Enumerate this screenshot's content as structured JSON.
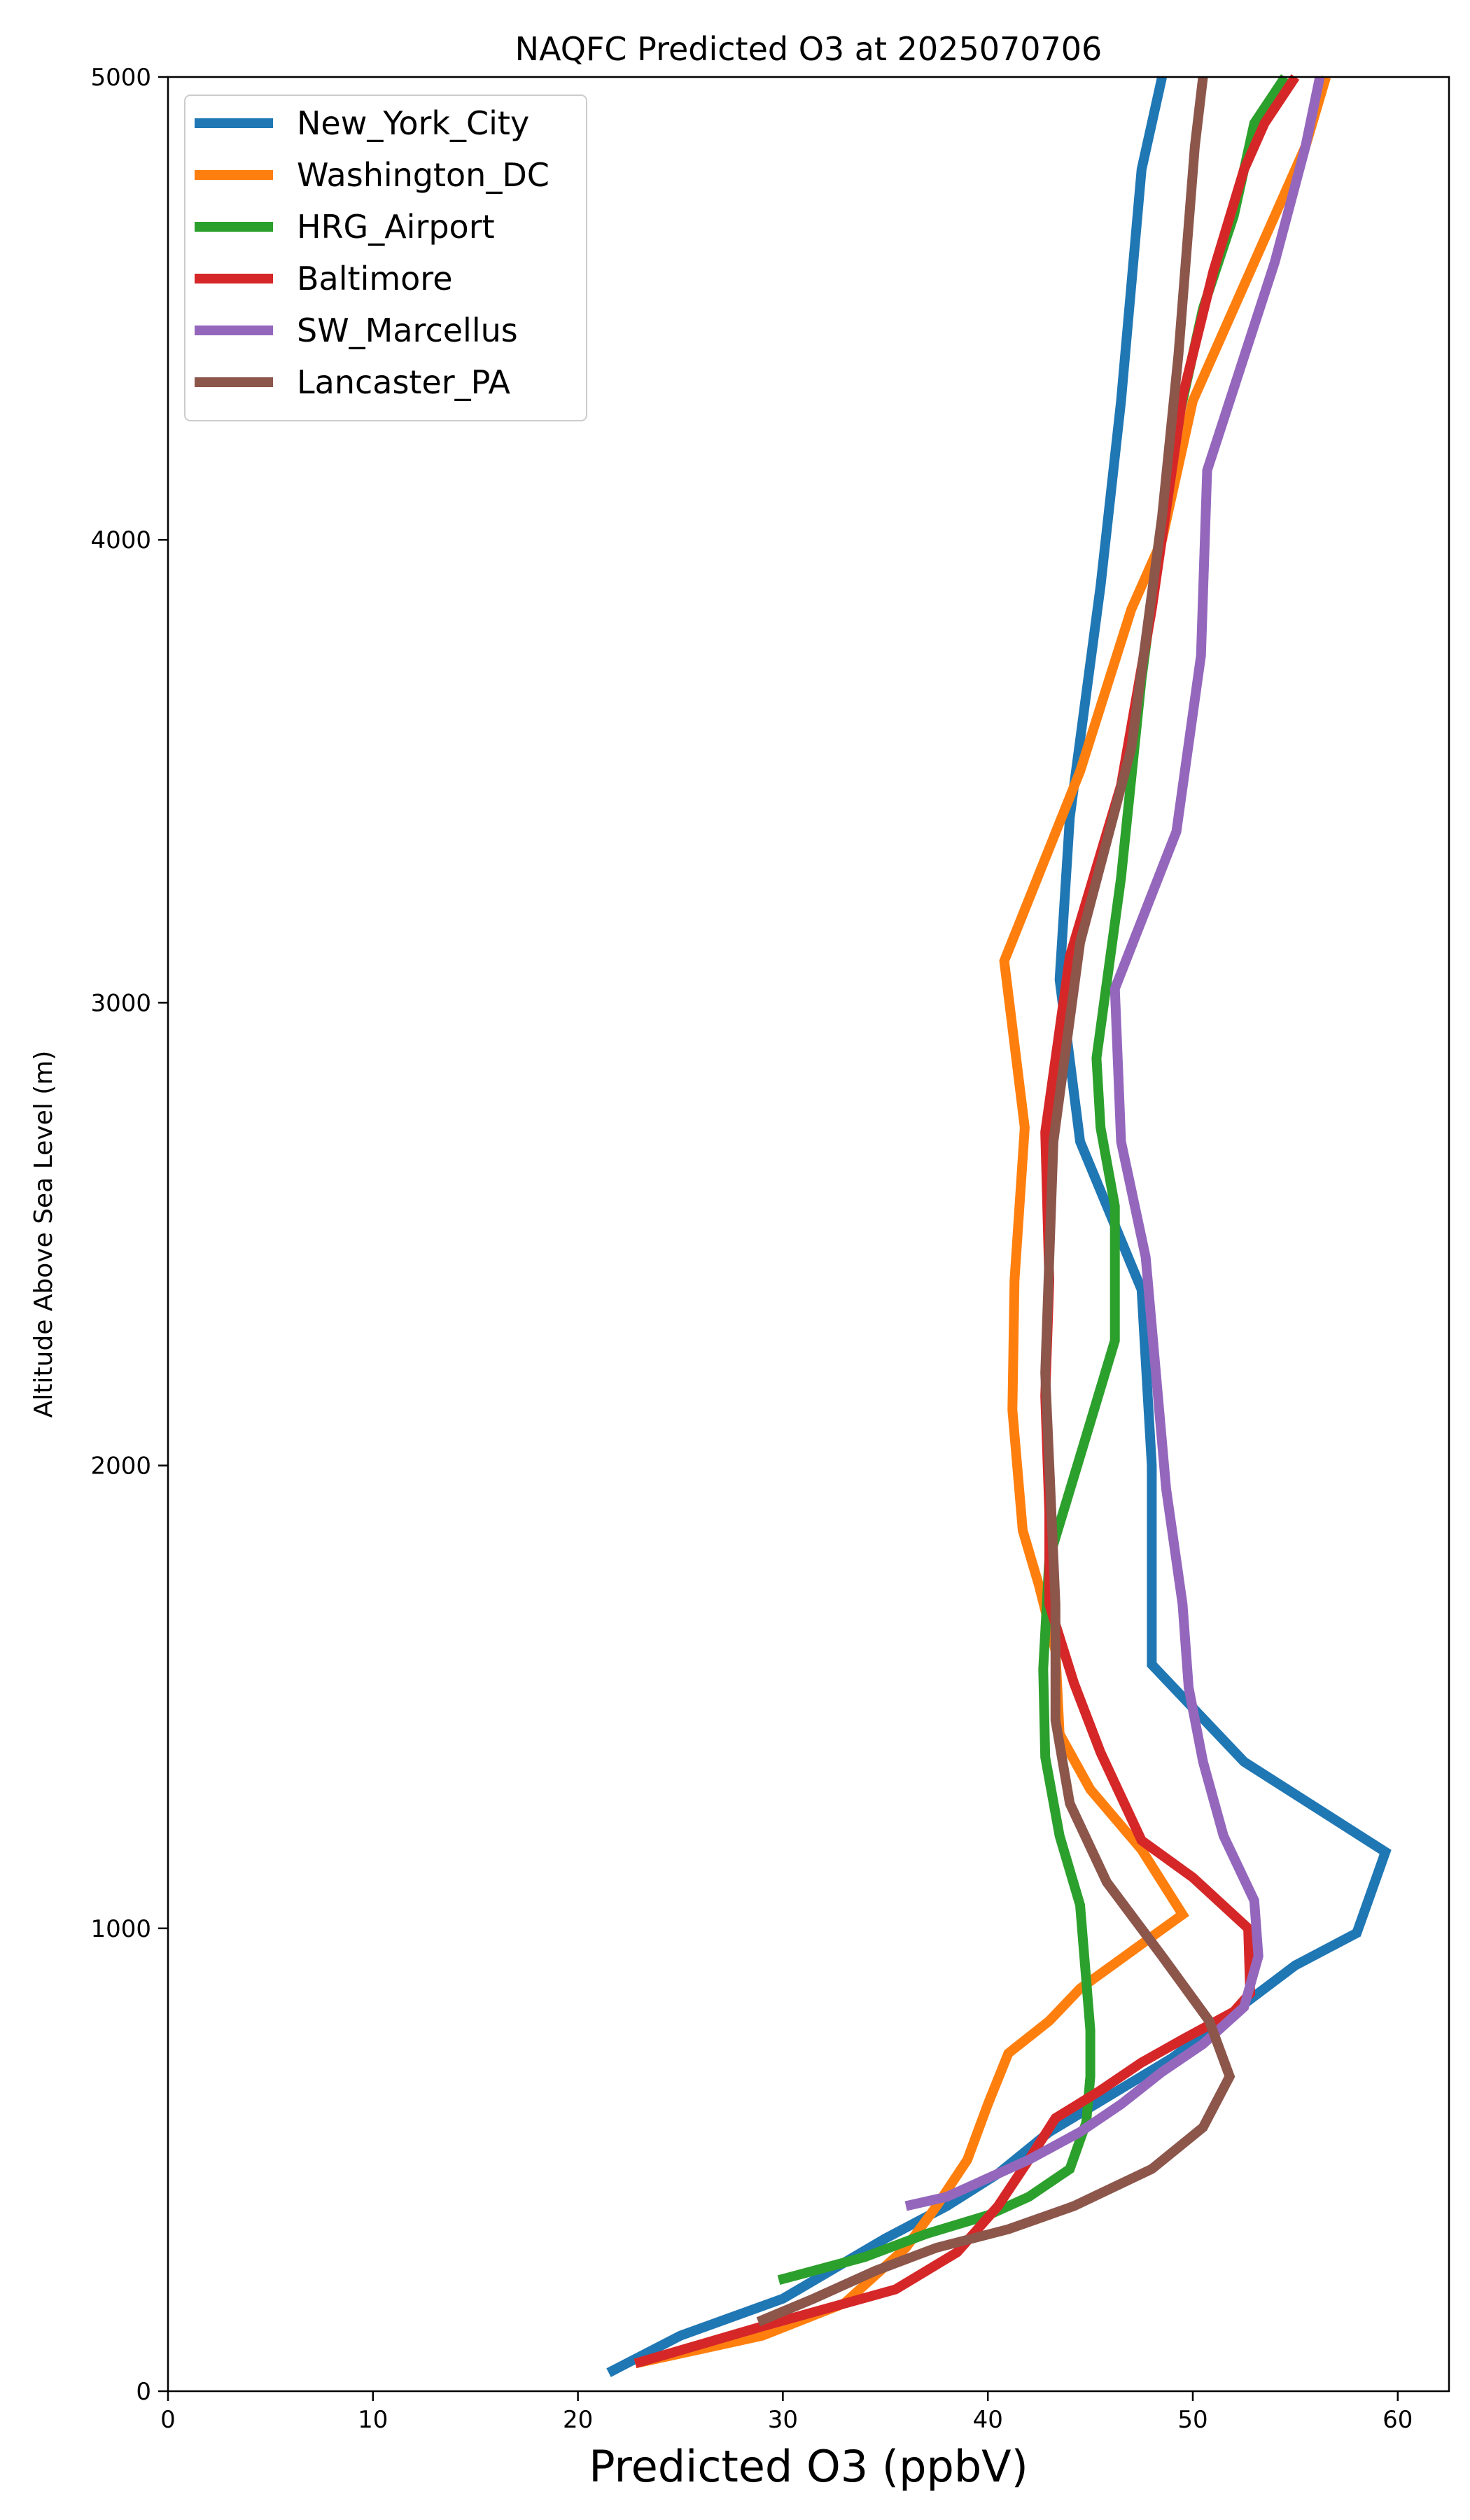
{
  "chart_data": {
    "type": "line",
    "title": "NAQFC Predicted O3 at 2025070706",
    "xlabel": "Predicted O3 (ppbV)",
    "ylabel": "Altitude Above Sea Level (m)",
    "xlim": [
      0,
      62.5
    ],
    "ylim": [
      0,
      5000
    ],
    "xticks": [
      0,
      10,
      20,
      30,
      40,
      50,
      60
    ],
    "yticks": [
      0,
      1000,
      2000,
      3000,
      4000,
      5000
    ],
    "grid": false,
    "legend_position": "top-left",
    "series": [
      {
        "name": "New_York_City",
        "color": "#1f77b4",
        "points": [
          [
            21.5,
            40
          ],
          [
            25,
            120
          ],
          [
            30,
            200
          ],
          [
            35,
            330
          ],
          [
            38,
            400
          ],
          [
            40.5,
            470
          ],
          [
            43,
            560
          ],
          [
            46,
            640
          ],
          [
            49,
            720
          ],
          [
            52,
            820
          ],
          [
            55,
            920
          ],
          [
            58,
            990
          ],
          [
            59.4,
            1165
          ],
          [
            52.5,
            1360
          ],
          [
            48,
            1570
          ],
          [
            48,
            1800
          ],
          [
            48,
            2000
          ],
          [
            47.5,
            2380
          ],
          [
            44.5,
            2700
          ],
          [
            43.5,
            3050
          ],
          [
            44,
            3400
          ],
          [
            45.5,
            3900
          ],
          [
            46.5,
            4300
          ],
          [
            47.5,
            4800
          ],
          [
            48.5,
            5000
          ]
        ]
      },
      {
        "name": "Washington_DC",
        "color": "#ff7f0e",
        "points": [
          [
            22.8,
            60
          ],
          [
            29,
            120
          ],
          [
            33,
            190
          ],
          [
            36,
            310
          ],
          [
            37.5,
            400
          ],
          [
            39,
            500
          ],
          [
            40,
            620
          ],
          [
            41,
            730
          ],
          [
            43,
            800
          ],
          [
            44.5,
            870
          ],
          [
            47,
            950
          ],
          [
            49.5,
            1030
          ],
          [
            47.5,
            1170
          ],
          [
            45,
            1300
          ],
          [
            43.5,
            1420
          ],
          [
            43.3,
            1600
          ],
          [
            42.5,
            1740
          ],
          [
            41.7,
            1860
          ],
          [
            41.2,
            2120
          ],
          [
            41.3,
            2400
          ],
          [
            41.8,
            2730
          ],
          [
            40.8,
            3090
          ],
          [
            44.5,
            3500
          ],
          [
            47,
            3850
          ],
          [
            48.5,
            4000
          ],
          [
            50,
            4300
          ],
          [
            53,
            4600
          ],
          [
            55.5,
            4850
          ],
          [
            56.5,
            5000
          ]
        ]
      },
      {
        "name": "HRG_Airport",
        "color": "#2ca02c",
        "points": [
          [
            29.8,
            240
          ],
          [
            34,
            290
          ],
          [
            37,
            340
          ],
          [
            40,
            380
          ],
          [
            42,
            420
          ],
          [
            44,
            480
          ],
          [
            44.8,
            580
          ],
          [
            45,
            680
          ],
          [
            45,
            780
          ],
          [
            44.5,
            1050
          ],
          [
            43.5,
            1200
          ],
          [
            42.8,
            1370
          ],
          [
            42.7,
            1560
          ],
          [
            43,
            1800
          ],
          [
            44.5,
            2020
          ],
          [
            46.2,
            2270
          ],
          [
            46.2,
            2560
          ],
          [
            45.5,
            2730
          ],
          [
            45.3,
            2880
          ],
          [
            46.5,
            3270
          ],
          [
            47.5,
            3700
          ],
          [
            49,
            4200
          ],
          [
            50.5,
            4500
          ],
          [
            52,
            4700
          ],
          [
            53,
            4900
          ],
          [
            54.5,
            5000
          ]
        ]
      },
      {
        "name": "Baltimore",
        "color": "#d62728",
        "points": [
          [
            22.8,
            60
          ],
          [
            29,
            140
          ],
          [
            35.5,
            220
          ],
          [
            38.5,
            300
          ],
          [
            40.5,
            400
          ],
          [
            42,
            500
          ],
          [
            43.3,
            590
          ],
          [
            45.5,
            650
          ],
          [
            47.5,
            710
          ],
          [
            49.5,
            760
          ],
          [
            52,
            820
          ],
          [
            52.8,
            860
          ],
          [
            52.7,
            1000
          ],
          [
            50,
            1110
          ],
          [
            47.5,
            1190
          ],
          [
            45.5,
            1380
          ],
          [
            44.2,
            1530
          ],
          [
            43,
            1700
          ],
          [
            43,
            1900
          ],
          [
            42.8,
            2150
          ],
          [
            43,
            2400
          ],
          [
            42.8,
            2720
          ],
          [
            44,
            3100
          ],
          [
            46.5,
            3470
          ],
          [
            48,
            3850
          ],
          [
            49.5,
            4310
          ],
          [
            51,
            4580
          ],
          [
            52.5,
            4800
          ],
          [
            53.5,
            4900
          ],
          [
            55,
            5000
          ]
        ]
      },
      {
        "name": "SW_Marcellus",
        "color": "#9467bd",
        "points": [
          [
            36,
            400
          ],
          [
            38,
            420
          ],
          [
            40,
            460
          ],
          [
            42,
            500
          ],
          [
            44.5,
            560
          ],
          [
            46.5,
            620
          ],
          [
            48.5,
            690
          ],
          [
            50.5,
            750
          ],
          [
            52.5,
            830
          ],
          [
            53.2,
            940
          ],
          [
            53,
            1060
          ],
          [
            51.5,
            1200
          ],
          [
            50.5,
            1360
          ],
          [
            49.8,
            1520
          ],
          [
            49.5,
            1700
          ],
          [
            48.7,
            1950
          ],
          [
            47.7,
            2450
          ],
          [
            46.5,
            2700
          ],
          [
            46.2,
            3030
          ],
          [
            49.2,
            3370
          ],
          [
            50.4,
            3750
          ],
          [
            50.7,
            4150
          ],
          [
            54,
            4600
          ],
          [
            55.5,
            4850
          ],
          [
            56.2,
            5000
          ]
        ]
      },
      {
        "name": "Lancaster_PA",
        "color": "#8c564b",
        "points": [
          [
            28.8,
            150
          ],
          [
            31.5,
            200
          ],
          [
            34.5,
            260
          ],
          [
            37.5,
            310
          ],
          [
            41,
            350
          ],
          [
            44.2,
            400
          ],
          [
            48,
            480
          ],
          [
            50.5,
            570
          ],
          [
            51.8,
            680
          ],
          [
            50.8,
            800
          ],
          [
            48.5,
            940
          ],
          [
            45.8,
            1100
          ],
          [
            44,
            1270
          ],
          [
            43.3,
            1450
          ],
          [
            43.3,
            1700
          ],
          [
            42.8,
            2200
          ],
          [
            43.2,
            2700
          ],
          [
            44.5,
            3130
          ],
          [
            47,
            3550
          ],
          [
            48.5,
            4050
          ],
          [
            49.3,
            4400
          ],
          [
            50.1,
            4850
          ],
          [
            50.5,
            5000
          ]
        ]
      }
    ]
  }
}
